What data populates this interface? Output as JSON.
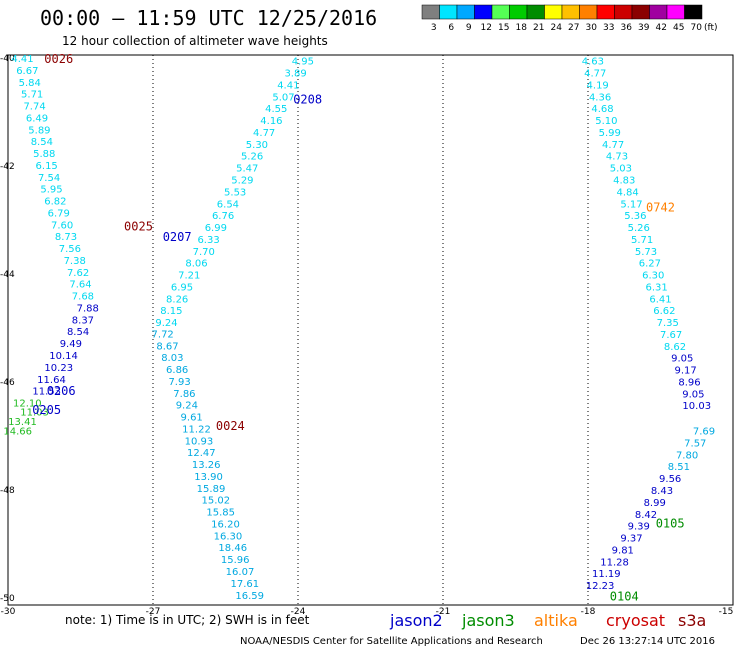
{
  "header": {
    "title": "00:00 – 11:59 UTC 12/25/2016",
    "subtitle": "12 hour collection of altimeter wave heights"
  },
  "legend": {
    "unit": "(ft)",
    "items": [
      {
        "label": "3",
        "color": "#7f7f7f"
      },
      {
        "label": "6",
        "color": "#00e5ff"
      },
      {
        "label": "9",
        "color": "#00a8ff"
      },
      {
        "label": "12",
        "color": "#0000ff"
      },
      {
        "label": "15",
        "color": "#55ff55"
      },
      {
        "label": "18",
        "color": "#00cc00"
      },
      {
        "label": "21",
        "color": "#008c00"
      },
      {
        "label": "24",
        "color": "#ffff00"
      },
      {
        "label": "27",
        "color": "#ffc000"
      },
      {
        "label": "30",
        "color": "#ff8000"
      },
      {
        "label": "33",
        "color": "#ff0000"
      },
      {
        "label": "36",
        "color": "#cc0000"
      },
      {
        "label": "39",
        "color": "#8b0000"
      },
      {
        "label": "42",
        "color": "#a000a0"
      },
      {
        "label": "45",
        "color": "#ff00ff"
      },
      {
        "label": "70",
        "color": "#000000"
      }
    ]
  },
  "axes": {
    "lat_ticks": [
      {
        "v": -40,
        "label": "-40"
      },
      {
        "v": -42,
        "label": "-42"
      },
      {
        "v": -44,
        "label": "-44"
      },
      {
        "v": -46,
        "label": "-46"
      },
      {
        "v": -48,
        "label": "-48"
      },
      {
        "v": -50,
        "label": "-50"
      }
    ],
    "lon_ticks": [
      {
        "v": -30,
        "label": "-30"
      },
      {
        "v": -27,
        "label": "-27"
      },
      {
        "v": -24,
        "label": "-24"
      },
      {
        "v": -21,
        "label": "-21"
      },
      {
        "v": -18,
        "label": "-18"
      },
      {
        "v": -15,
        "label": "-15"
      }
    ]
  },
  "tracks": [
    {
      "id": "t0026",
      "color": "#00d8f0",
      "points": [
        {
          "lon": -29.7,
          "lat": -40.0,
          "v": "4.41"
        },
        {
          "lon": -29.6,
          "lat": -40.22,
          "v": "6.67"
        },
        {
          "lon": -29.55,
          "lat": -40.44,
          "v": "5.84"
        },
        {
          "lon": -29.5,
          "lat": -40.66,
          "v": "5.71"
        },
        {
          "lon": -29.45,
          "lat": -40.88,
          "v": "7.74"
        },
        {
          "lon": -29.4,
          "lat": -41.1,
          "v": "6.49"
        },
        {
          "lon": -29.35,
          "lat": -41.32,
          "v": "5.89"
        },
        {
          "lon": -29.3,
          "lat": -41.54,
          "v": "8.54"
        },
        {
          "lon": -29.25,
          "lat": -41.76,
          "v": "5.88"
        },
        {
          "lon": -29.2,
          "lat": -41.98,
          "v": "6.15"
        },
        {
          "lon": -29.15,
          "lat": -42.2,
          "v": "7.54"
        },
        {
          "lon": -29.1,
          "lat": -42.42,
          "v": "5.95"
        },
        {
          "lon": -29.02,
          "lat": -42.64,
          "v": "6.82"
        },
        {
          "lon": -28.95,
          "lat": -42.86,
          "v": "6.79"
        },
        {
          "lon": -28.88,
          "lat": -43.08,
          "v": "7.60"
        },
        {
          "lon": -28.8,
          "lat": -43.3,
          "v": "8.73"
        },
        {
          "lon": -28.72,
          "lat": -43.52,
          "v": "7.56"
        },
        {
          "lon": -28.62,
          "lat": -43.74,
          "v": "7.38"
        },
        {
          "lon": -28.55,
          "lat": -43.96,
          "v": "7.62"
        },
        {
          "lon": -28.5,
          "lat": -44.18,
          "v": "7.64"
        },
        {
          "lon": -28.45,
          "lat": -44.4,
          "v": "7.68"
        }
      ]
    },
    {
      "id": "t0025",
      "color": "#00d8f0",
      "points": [
        {
          "lon": -23.9,
          "lat": -40.05,
          "v": "4.95"
        },
        {
          "lon": -24.05,
          "lat": -40.27,
          "v": "3.89"
        },
        {
          "lon": -24.2,
          "lat": -40.49,
          "v": "4.41"
        },
        {
          "lon": -24.3,
          "lat": -40.71,
          "v": "5.07"
        },
        {
          "lon": -24.45,
          "lat": -40.93,
          "v": "4.55"
        },
        {
          "lon": -24.55,
          "lat": -41.15,
          "v": "4.16"
        },
        {
          "lon": -24.7,
          "lat": -41.37,
          "v": "4.77"
        },
        {
          "lon": -24.85,
          "lat": -41.59,
          "v": "5.30"
        },
        {
          "lon": -24.95,
          "lat": -41.81,
          "v": "5.26"
        },
        {
          "lon": -25.05,
          "lat": -42.03,
          "v": "5.47"
        },
        {
          "lon": -25.15,
          "lat": -42.25,
          "v": "5.29"
        },
        {
          "lon": -25.3,
          "lat": -42.47,
          "v": "5.53"
        },
        {
          "lon": -25.45,
          "lat": -42.69,
          "v": "6.54"
        },
        {
          "lon": -25.55,
          "lat": -42.91,
          "v": "6.76"
        },
        {
          "lon": -25.7,
          "lat": -43.13,
          "v": "6.99"
        },
        {
          "lon": -25.85,
          "lat": -43.35,
          "v": "6.33"
        },
        {
          "lon": -25.95,
          "lat": -43.57,
          "v": "7.70"
        },
        {
          "lon": -26.1,
          "lat": -43.79,
          "v": "8.06"
        },
        {
          "lon": -26.25,
          "lat": -44.01,
          "v": "7.21"
        },
        {
          "lon": -26.4,
          "lat": -44.23,
          "v": "6.95"
        },
        {
          "lon": -26.5,
          "lat": -44.45,
          "v": "8.26"
        },
        {
          "lon": -26.62,
          "lat": -44.67,
          "v": "8.15"
        },
        {
          "lon": -26.72,
          "lat": -44.89,
          "v": "9.24"
        }
      ]
    },
    {
      "id": "t0024",
      "color": "#0000c8",
      "points": [
        {
          "lon": -28.35,
          "lat": -44.62,
          "v": "7.88"
        },
        {
          "lon": -28.45,
          "lat": -44.84,
          "v": "8.37"
        },
        {
          "lon": -28.55,
          "lat": -45.06,
          "v": "8.54"
        },
        {
          "lon": -28.7,
          "lat": -45.28,
          "v": "9.49"
        },
        {
          "lon": -28.85,
          "lat": -45.5,
          "v": "10.14"
        },
        {
          "lon": -28.95,
          "lat": -45.72,
          "v": "10.23"
        },
        {
          "lon": -29.1,
          "lat": -45.94,
          "v": "11.64"
        },
        {
          "lon": -29.2,
          "lat": -46.16,
          "v": "11.53"
        }
      ]
    },
    {
      "id": "t0024b",
      "color": "#00a8e0",
      "points": [
        {
          "lon": -26.8,
          "lat": -45.1,
          "v": "7.72"
        },
        {
          "lon": -26.7,
          "lat": -45.32,
          "v": "8.67"
        },
        {
          "lon": -26.6,
          "lat": -45.54,
          "v": "8.03"
        },
        {
          "lon": -26.5,
          "lat": -45.76,
          "v": "6.86"
        },
        {
          "lon": -26.45,
          "lat": -45.98,
          "v": "7.93"
        },
        {
          "lon": -26.35,
          "lat": -46.2,
          "v": "7.86"
        },
        {
          "lon": -26.3,
          "lat": -46.42,
          "v": "9.24"
        },
        {
          "lon": -26.2,
          "lat": -46.64,
          "v": "9.61"
        },
        {
          "lon": -26.1,
          "lat": -46.86,
          "v": "11.22"
        },
        {
          "lon": -26.05,
          "lat": -47.08,
          "v": "10.93"
        },
        {
          "lon": -26.0,
          "lat": -47.3,
          "v": "12.47"
        },
        {
          "lon": -25.9,
          "lat": -47.52,
          "v": "13.26"
        },
        {
          "lon": -25.85,
          "lat": -47.74,
          "v": "13.90"
        },
        {
          "lon": -25.8,
          "lat": -47.96,
          "v": "15.89"
        },
        {
          "lon": -25.7,
          "lat": -48.18,
          "v": "15.02"
        },
        {
          "lon": -25.6,
          "lat": -48.4,
          "v": "15.85"
        },
        {
          "lon": -25.5,
          "lat": -48.62,
          "v": "16.20"
        },
        {
          "lon": -25.45,
          "lat": -48.84,
          "v": "16.30"
        },
        {
          "lon": -25.35,
          "lat": -49.06,
          "v": "18.46"
        },
        {
          "lon": -25.3,
          "lat": -49.28,
          "v": "15.96"
        },
        {
          "lon": -25.2,
          "lat": -49.5,
          "v": "16.07"
        },
        {
          "lon": -25.1,
          "lat": -49.72,
          "v": "17.61"
        },
        {
          "lon": -25.0,
          "lat": -49.94,
          "v": "16.59"
        }
      ]
    },
    {
      "id": "t0206",
      "color": "#22bb22",
      "points": [
        {
          "lon": -29.6,
          "lat": -46.38,
          "v": "12.10"
        },
        {
          "lon": -29.45,
          "lat": -46.55,
          "v": "11.03"
        },
        {
          "lon": -29.7,
          "lat": -46.72,
          "v": "13.41"
        },
        {
          "lon": -29.8,
          "lat": -46.9,
          "v": "14.66"
        }
      ]
    },
    {
      "id": "t0742",
      "color": "#00d8f0",
      "points": [
        {
          "lon": -17.9,
          "lat": -40.05,
          "v": "4.63"
        },
        {
          "lon": -17.85,
          "lat": -40.27,
          "v": "4.77"
        },
        {
          "lon": -17.8,
          "lat": -40.49,
          "v": "4.19"
        },
        {
          "lon": -17.75,
          "lat": -40.71,
          "v": "4.36"
        },
        {
          "lon": -17.7,
          "lat": -40.93,
          "v": "4.68"
        },
        {
          "lon": -17.62,
          "lat": -41.15,
          "v": "5.10"
        },
        {
          "lon": -17.55,
          "lat": -41.37,
          "v": "5.99"
        },
        {
          "lon": -17.48,
          "lat": -41.59,
          "v": "4.77"
        },
        {
          "lon": -17.4,
          "lat": -41.81,
          "v": "4.73"
        },
        {
          "lon": -17.32,
          "lat": -42.03,
          "v": "5.03"
        },
        {
          "lon": -17.25,
          "lat": -42.25,
          "v": "4.83"
        },
        {
          "lon": -17.18,
          "lat": -42.47,
          "v": "4.84"
        },
        {
          "lon": -17.1,
          "lat": -42.69,
          "v": "5.17"
        },
        {
          "lon": -17.02,
          "lat": -42.91,
          "v": "5.36"
        },
        {
          "lon": -16.95,
          "lat": -43.13,
          "v": "5.26"
        },
        {
          "lon": -16.88,
          "lat": -43.35,
          "v": "5.71"
        },
        {
          "lon": -16.8,
          "lat": -43.57,
          "v": "5.73"
        },
        {
          "lon": -16.72,
          "lat": -43.79,
          "v": "6.27"
        },
        {
          "lon": -16.65,
          "lat": -44.01,
          "v": "6.30"
        },
        {
          "lon": -16.58,
          "lat": -44.23,
          "v": "6.31"
        },
        {
          "lon": -16.5,
          "lat": -44.45,
          "v": "6.41"
        },
        {
          "lon": -16.42,
          "lat": -44.67,
          "v": "6.62"
        },
        {
          "lon": -16.35,
          "lat": -44.89,
          "v": "7.35"
        },
        {
          "lon": -16.28,
          "lat": -45.11,
          "v": "7.67"
        },
        {
          "lon": -16.2,
          "lat": -45.33,
          "v": "8.62"
        }
      ]
    },
    {
      "id": "t0105",
      "color": "#0000c8",
      "points": [
        {
          "lon": -16.05,
          "lat": -45.55,
          "v": "9.05"
        },
        {
          "lon": -15.98,
          "lat": -45.77,
          "v": "9.17"
        },
        {
          "lon": -15.9,
          "lat": -45.99,
          "v": "8.96"
        },
        {
          "lon": -15.82,
          "lat": -46.21,
          "v": "9.05"
        },
        {
          "lon": -15.75,
          "lat": -46.43,
          "v": "10.03"
        }
      ]
    },
    {
      "id": "t0105b",
      "color": "#00a8e0",
      "points": [
        {
          "lon": -15.6,
          "lat": -46.9,
          "v": "7.69"
        },
        {
          "lon": -15.78,
          "lat": -47.12,
          "v": "7.57"
        },
        {
          "lon": -15.95,
          "lat": -47.34,
          "v": "7.80"
        },
        {
          "lon": -16.12,
          "lat": -47.56,
          "v": "8.51"
        }
      ]
    },
    {
      "id": "t0104",
      "color": "#0000c8",
      "points": [
        {
          "lon": -16.3,
          "lat": -47.78,
          "v": "9.56"
        },
        {
          "lon": -16.47,
          "lat": -48.0,
          "v": "8.43"
        },
        {
          "lon": -16.62,
          "lat": -48.22,
          "v": "8.99"
        },
        {
          "lon": -16.8,
          "lat": -48.44,
          "v": "8.42"
        },
        {
          "lon": -16.95,
          "lat": -48.66,
          "v": "9.39"
        },
        {
          "lon": -17.1,
          "lat": -48.88,
          "v": "9.37"
        },
        {
          "lon": -17.28,
          "lat": -49.1,
          "v": "9.81"
        },
        {
          "lon": -17.45,
          "lat": -49.32,
          "v": "11.28"
        },
        {
          "lon": -17.62,
          "lat": -49.54,
          "v": "11.19"
        },
        {
          "lon": -17.75,
          "lat": -49.76,
          "v": "12.23"
        }
      ]
    }
  ],
  "pass_labels": [
    {
      "text": "0026",
      "color": "#8b0000",
      "lon": -28.95,
      "lat": -40.0
    },
    {
      "text": "0208",
      "color": "#0000c8",
      "lon": -23.8,
      "lat": -40.75
    },
    {
      "text": "0025",
      "color": "#8b0000",
      "lon": -27.3,
      "lat": -43.1
    },
    {
      "text": "0207",
      "color": "#0000c8",
      "lon": -26.5,
      "lat": -43.3
    },
    {
      "text": "0206",
      "color": "#0000c8",
      "lon": -28.9,
      "lat": -46.15
    },
    {
      "text": "0205",
      "color": "#0000c8",
      "lon": -29.2,
      "lat": -46.5
    },
    {
      "text": "0024",
      "color": "#8b0000",
      "lon": -25.4,
      "lat": -46.8
    },
    {
      "text": "0742",
      "color": "#ff8000",
      "lon": -16.5,
      "lat": -42.75
    },
    {
      "text": "0105",
      "color": "#008c00",
      "lon": -16.3,
      "lat": -48.6
    },
    {
      "text": "0104",
      "color": "#008c00",
      "lon": -17.25,
      "lat": -49.95
    }
  ],
  "footer": {
    "note": "note: 1) Time is in UTC; 2) SWH is in feet",
    "satellites": [
      {
        "name": "jason2",
        "color": "#0000c8"
      },
      {
        "name": "jason3",
        "color": "#008c00"
      },
      {
        "name": "altika",
        "color": "#ff8000"
      },
      {
        "name": "cryosat",
        "color": "#cc0000"
      },
      {
        "name": "s3a",
        "color": "#8b0000"
      }
    ],
    "credit": "NOAA/NESDIS Center for Satellite Applications and Research",
    "timestamp": "Dec 26 13:27:14 UTC 2016"
  }
}
